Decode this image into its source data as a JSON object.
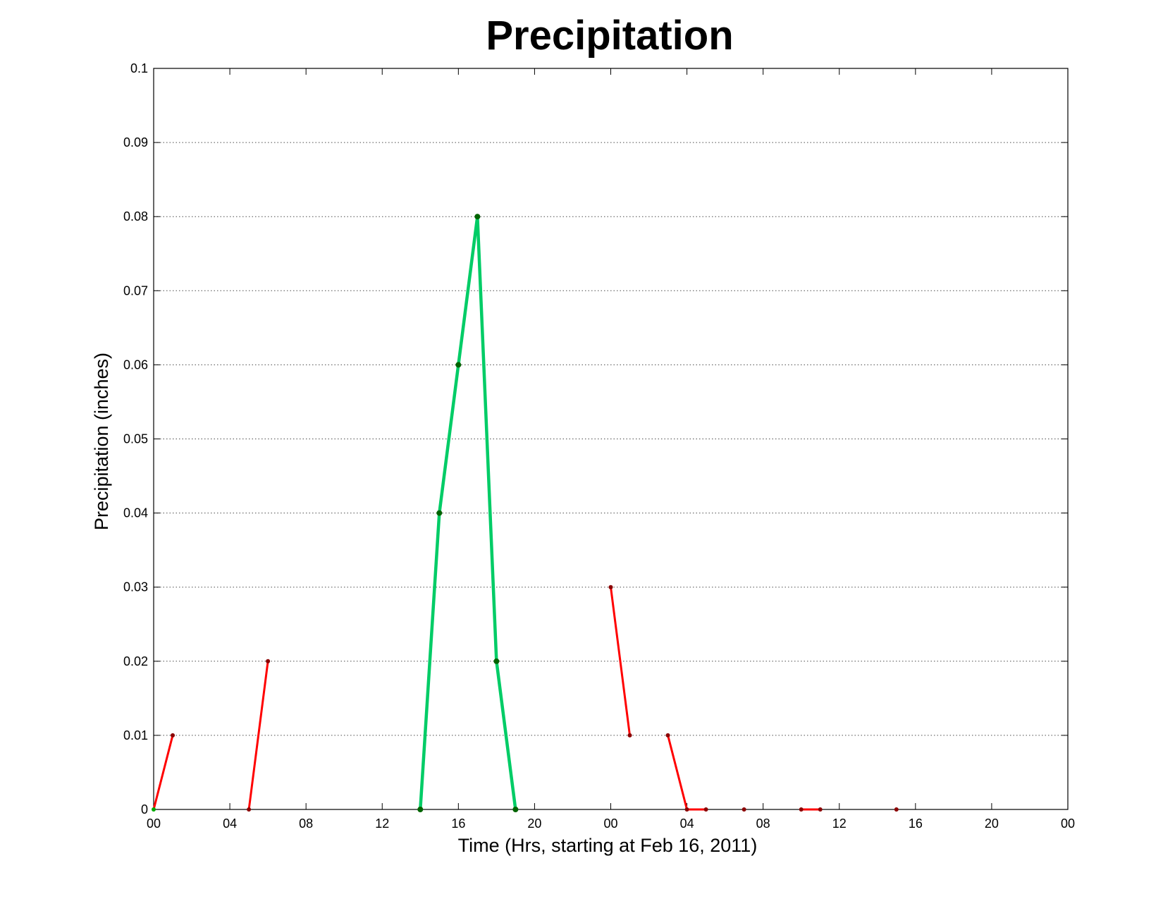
{
  "chart_data": {
    "type": "line",
    "title": "Precipitation",
    "xlabel": "Time (Hrs, starting at Feb 16, 2011)",
    "ylabel": "Precipitation (inches)",
    "xlim": [
      0,
      48
    ],
    "ylim": [
      0,
      0.1
    ],
    "grid": true,
    "x_ticks": [
      0,
      4,
      8,
      12,
      16,
      20,
      24,
      28,
      32,
      36,
      40,
      44,
      48
    ],
    "x_tick_labels": [
      "00",
      "04",
      "08",
      "12",
      "16",
      "20",
      "00",
      "04",
      "08",
      "12",
      "16",
      "20",
      "00"
    ],
    "y_ticks": [
      0,
      0.01,
      0.02,
      0.03,
      0.04,
      0.05,
      0.06,
      0.07,
      0.08,
      0.09,
      0.1
    ],
    "y_tick_labels": [
      "0",
      "0.01",
      "0.02",
      "0.03",
      "0.04",
      "0.05",
      "0.06",
      "0.07",
      "0.08",
      "0.09",
      "0.1"
    ],
    "series": [
      {
        "color": "#ff0000",
        "marker_color": "#8b0000",
        "style": "thin",
        "points": [
          [
            0,
            0
          ],
          [
            1,
            0.01
          ]
        ]
      },
      {
        "color": "#ff0000",
        "marker_color": "#8b0000",
        "style": "thin",
        "points": [
          [
            5,
            0
          ],
          [
            6,
            0.02
          ]
        ]
      },
      {
        "color": "#00cc66",
        "marker_color": "#006400",
        "style": "thick",
        "points": [
          [
            14,
            0
          ],
          [
            15,
            0.04
          ],
          [
            16,
            0.06
          ],
          [
            17,
            0.08
          ],
          [
            18,
            0.02
          ],
          [
            19,
            0
          ]
        ]
      },
      {
        "color": "#ff0000",
        "marker_color": "#8b0000",
        "style": "thin",
        "points": [
          [
            24,
            0.03
          ],
          [
            25,
            0.01
          ]
        ]
      },
      {
        "color": "#ff0000",
        "marker_color": "#8b0000",
        "style": "thin",
        "points": [
          [
            27,
            0.01
          ],
          [
            28,
            0
          ],
          [
            29,
            0
          ]
        ]
      },
      {
        "color": "#ff0000",
        "marker_color": "#8b0000",
        "style": "thin",
        "points": [
          [
            31,
            0
          ]
        ]
      },
      {
        "color": "#ff0000",
        "marker_color": "#8b0000",
        "style": "thin",
        "points": [
          [
            34,
            0
          ],
          [
            35,
            0
          ]
        ]
      },
      {
        "color": "#ff0000",
        "marker_color": "#8b0000",
        "style": "thin",
        "points": [
          [
            39,
            0
          ]
        ]
      }
    ],
    "first_point_marker_color": "#00aa00"
  }
}
